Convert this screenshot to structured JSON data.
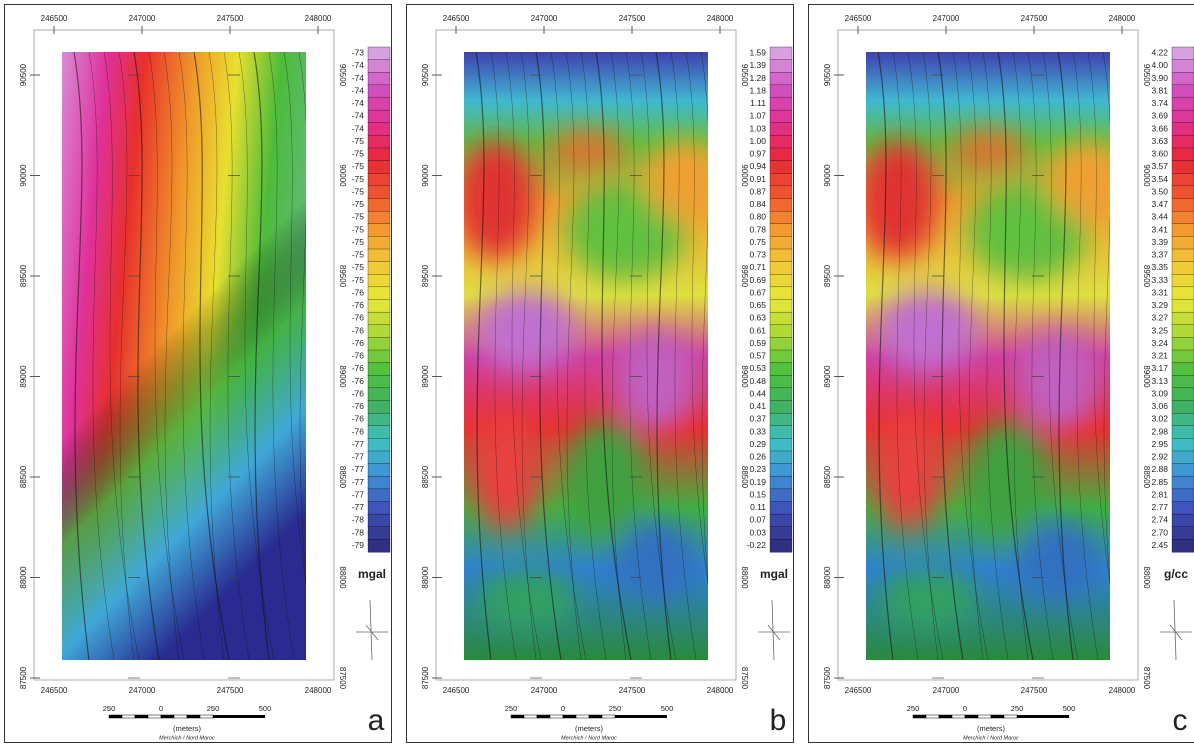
{
  "panels": [
    {
      "letter": "a",
      "unit": "mgal",
      "x_labels": [
        "246500",
        "247000",
        "247500",
        "248000"
      ],
      "y_labels": [
        "90500",
        "90000",
        "89500",
        "89000",
        "88500",
        "88000",
        "87500"
      ],
      "colorbar": [
        "-73",
        "-74",
        "-74",
        "-74",
        "-74",
        "-74",
        "-74",
        "-75",
        "-75",
        "-75",
        "-75",
        "-75",
        "-75",
        "-75",
        "-75",
        "-75",
        "-75",
        "-75",
        "-75",
        "-76",
        "-76",
        "-76",
        "-76",
        "-76",
        "-76",
        "-76",
        "-76",
        "-76",
        "-76",
        "-76",
        "-76",
        "-77",
        "-77",
        "-77",
        "-77",
        "-77",
        "-77",
        "-78",
        "-78",
        "-79"
      ],
      "scale_labels": [
        "250",
        "0",
        "250",
        "500"
      ],
      "scale_unit": "(meters)",
      "projection": "Merchich / Nord Maroc"
    },
    {
      "letter": "b",
      "unit": "mgal",
      "x_labels": [
        "246500",
        "247000",
        "247500",
        "248000"
      ],
      "y_labels": [
        "90500",
        "90000",
        "89500",
        "89000",
        "88500",
        "88000",
        "87500"
      ],
      "colorbar": [
        "1.59",
        "1.39",
        "1.28",
        "1.18",
        "1.11",
        "1.07",
        "1.03",
        "1.00",
        "0.97",
        "0.94",
        "0.91",
        "0.87",
        "0.84",
        "0.80",
        "0.78",
        "0.75",
        "0.73",
        "0.71",
        "0.69",
        "0.67",
        "0.65",
        "0.63",
        "0.61",
        "0.59",
        "0.57",
        "0.53",
        "0.48",
        "0.44",
        "0.41",
        "0.37",
        "0.33",
        "0.29",
        "0.26",
        "0.23",
        "0.19",
        "0.15",
        "0.11",
        "0.07",
        "0.03",
        "-0.22"
      ],
      "scale_labels": [
        "250",
        "0",
        "250",
        "500"
      ],
      "scale_unit": "(meters)",
      "projection": "Merchich / Nord Maroc"
    },
    {
      "letter": "c",
      "unit": "g/cc",
      "x_labels": [
        "246500",
        "247000",
        "247500",
        "248000"
      ],
      "y_labels": [
        "90500",
        "90000",
        "89500",
        "89000",
        "88500",
        "88000",
        "87500"
      ],
      "colorbar": [
        "4.22",
        "4.00",
        "3.90",
        "3.81",
        "3.74",
        "3.69",
        "3.66",
        "3.63",
        "3.60",
        "3.57",
        "3.54",
        "3.50",
        "3.47",
        "3.44",
        "3.41",
        "3.39",
        "3.37",
        "3.35",
        "3.33",
        "3.31",
        "3.29",
        "3.27",
        "3.25",
        "3.24",
        "3.21",
        "3.17",
        "3.13",
        "3.09",
        "3.06",
        "3.02",
        "2.98",
        "2.95",
        "2.92",
        "2.88",
        "2.85",
        "2.81",
        "2.77",
        "2.74",
        "2.70",
        "2.45"
      ],
      "scale_labels": [
        "250",
        "0",
        "250",
        "500"
      ],
      "scale_unit": "(meters)",
      "projection": "Merchich / Nord Maroc"
    }
  ]
}
